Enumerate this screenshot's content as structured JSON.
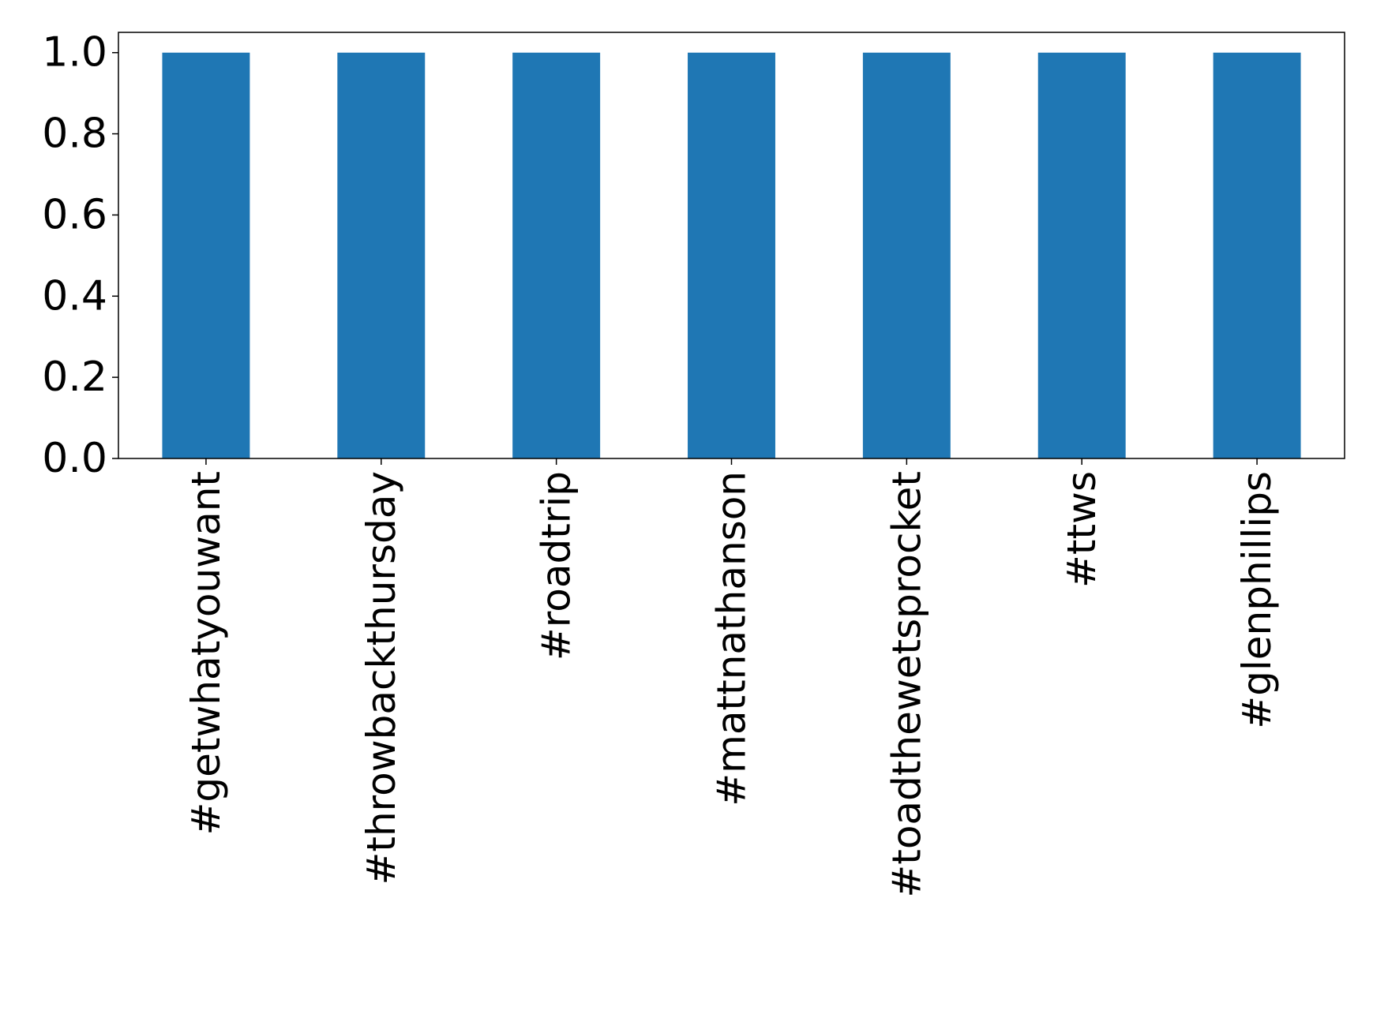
{
  "chart_data": {
    "type": "bar",
    "title": "",
    "xlabel": "",
    "ylabel": "",
    "categories": [
      "#getwhatyouwant",
      "#throwbackthursday",
      "#roadtrip",
      "#mattnathanson",
      "#toadthewetsprocket",
      "#ttws",
      "#glenphillips"
    ],
    "values": [
      1.0,
      1.0,
      1.0,
      1.0,
      1.0,
      1.0,
      1.0
    ],
    "ylim": [
      0,
      1.05
    ],
    "yticks": [
      "0.0",
      "0.2",
      "0.4",
      "0.6",
      "0.8",
      "1.0"
    ],
    "grid": false,
    "legend": "none",
    "bar_color": "#1f77b4"
  }
}
